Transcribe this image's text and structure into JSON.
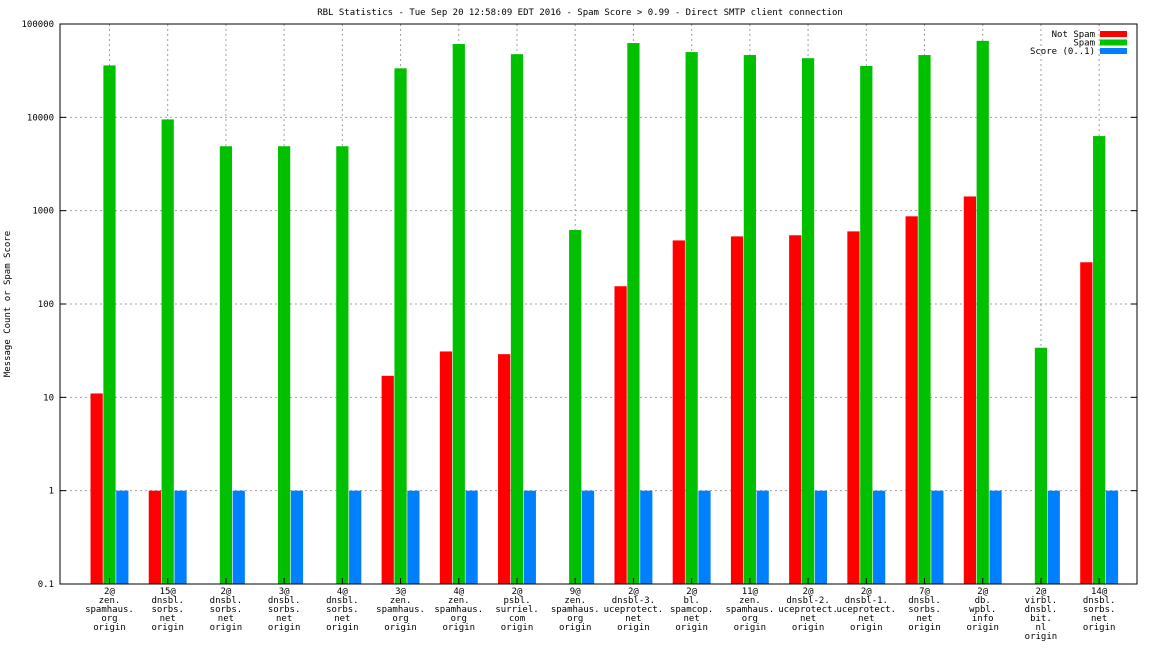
{
  "chart_data": {
    "type": "bar",
    "title": "RBL Statistics - Tue Sep 20 12:58:09 EDT 2016 - Spam Score > 0.99 - Direct SMTP client connection",
    "xlabel": "",
    "ylabel": "Message Count or Spam Score",
    "yscale": "log",
    "ylim": [
      0.1,
      100000
    ],
    "yticks": [
      "0.1",
      "1",
      "10",
      "100",
      "1000",
      "10000",
      "100000"
    ],
    "grid": true,
    "legend_position": "top-right",
    "categories": [
      [
        "2@",
        "zen.",
        "spamhaus.",
        "org",
        "origin"
      ],
      [
        "15@",
        "dnsbl.",
        "sorbs.",
        "net",
        "origin"
      ],
      [
        "2@",
        "dnsbl.",
        "sorbs.",
        "net",
        "origin"
      ],
      [
        "3@",
        "dnsbl.",
        "sorbs.",
        "net",
        "origin"
      ],
      [
        "4@",
        "dnsbl.",
        "sorbs.",
        "net",
        "origin"
      ],
      [
        "3@",
        "zen.",
        "spamhaus.",
        "org",
        "origin"
      ],
      [
        "4@",
        "zen.",
        "spamhaus.",
        "org",
        "origin"
      ],
      [
        "2@",
        "psbl.",
        "surriel.",
        "com",
        "origin"
      ],
      [
        "9@",
        "zen.",
        "spamhaus.",
        "org",
        "origin"
      ],
      [
        "2@",
        "dnsbl-3.",
        "uceprotect.",
        "net",
        "origin"
      ],
      [
        "2@",
        "bl.",
        "spamcop.",
        "net",
        "origin"
      ],
      [
        "11@",
        "zen.",
        "spamhaus.",
        "org",
        "origin"
      ],
      [
        "2@",
        "dnsbl-2.",
        "uceprotect.",
        "net",
        "origin"
      ],
      [
        "2@",
        "dnsbl-1.",
        "uceprotect.",
        "net",
        "origin"
      ],
      [
        "7@",
        "dnsbl.",
        "sorbs.",
        "net",
        "origin"
      ],
      [
        "2@",
        "db.",
        "wpbl.",
        "info",
        "origin"
      ],
      [
        "2@",
        "virbl.",
        "dnsbl.",
        "bit.",
        "nl",
        "origin"
      ],
      [
        "14@",
        "dnsbl.",
        "sorbs.",
        "net",
        "origin"
      ]
    ],
    "series": [
      {
        "name": "Not Spam",
        "color": "#ff0000",
        "values": [
          11,
          1,
          null,
          null,
          null,
          17,
          31,
          29,
          null,
          155,
          480,
          530,
          545,
          600,
          870,
          1420,
          null,
          280
        ]
      },
      {
        "name": "Spam",
        "color": "#00c000",
        "values": [
          36000,
          9500,
          4900,
          4900,
          4900,
          33500,
          61000,
          47500,
          620,
          62500,
          50000,
          46500,
          43000,
          35500,
          46500,
          66000,
          34,
          6300
        ]
      },
      {
        "name": "Score (0..1)",
        "color": "#0080ff",
        "values": [
          1,
          1,
          1,
          1,
          1,
          1,
          1,
          1,
          1,
          1,
          1,
          1,
          1,
          1,
          1,
          1,
          1,
          1
        ]
      }
    ]
  }
}
